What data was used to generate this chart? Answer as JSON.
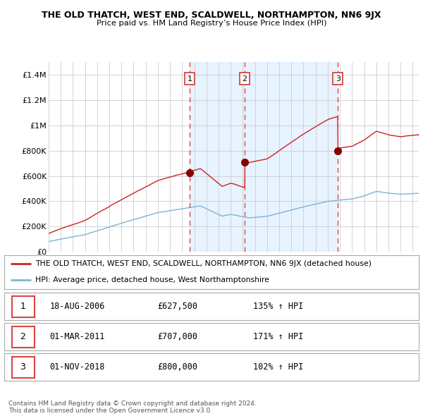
{
  "title": "THE OLD THATCH, WEST END, SCALDWELL, NORTHAMPTON, NN6 9JX",
  "subtitle": "Price paid vs. HM Land Registry’s House Price Index (HPI)",
  "ylim": [
    0,
    1500000
  ],
  "yticks": [
    0,
    200000,
    400000,
    600000,
    800000,
    1000000,
    1200000,
    1400000
  ],
  "ytick_labels": [
    "£0",
    "£200K",
    "£400K",
    "£600K",
    "£800K",
    "£1M",
    "£1.2M",
    "£1.4M"
  ],
  "hpi_color": "#7fb3d3",
  "price_color": "#cc2222",
  "sale_marker_color": "#880000",
  "dashed_color": "#dd4444",
  "shade_color": "#ddeeff",
  "grid_color": "#cccccc",
  "bg_color": "#ffffff",
  "xlim_start": 1995,
  "xlim_end": 2025.5,
  "sales": [
    {
      "date_num": 2006.63,
      "price": 627500,
      "label": "1"
    },
    {
      "date_num": 2011.16,
      "price": 707000,
      "label": "2"
    },
    {
      "date_num": 2018.83,
      "price": 800000,
      "label": "3"
    }
  ],
  "sale_dates_str": [
    "18-AUG-2006",
    "01-MAR-2011",
    "01-NOV-2018"
  ],
  "sale_prices_str": [
    "£627,500",
    "£707,000",
    "£800,000"
  ],
  "sale_hpi_pct": [
    "135% ↑ HPI",
    "171% ↑ HPI",
    "102% ↑ HPI"
  ],
  "legend_line1": "THE OLD THATCH, WEST END, SCALDWELL, NORTHAMPTON, NN6 9JX (detached house)",
  "legend_line2": "HPI: Average price, detached house, West Northamptonshire",
  "footnote": "Contains HM Land Registry data © Crown copyright and database right 2024.\nThis data is licensed under the Open Government Licence v3.0."
}
